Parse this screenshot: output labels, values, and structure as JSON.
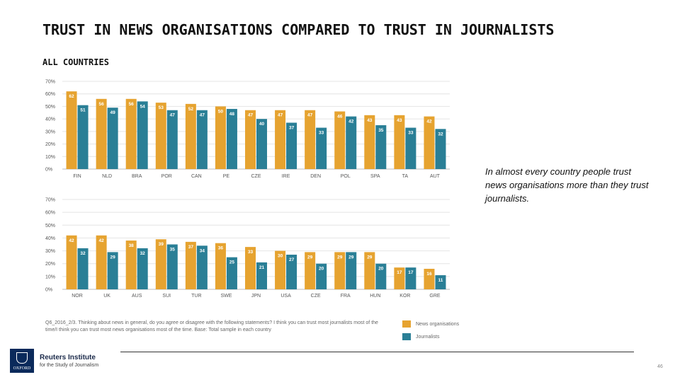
{
  "title": "TRUST IN NEWS ORGANISATIONS COMPARED TO TRUST IN JOURNALISTS",
  "subtitle": "ALL COUNTRIES",
  "annotation": "In almost every country people trust news organisations more than they trust journalists.",
  "footnote": "Q6_2016_2/3. Thinking about news in general, do you agree or disagree with the following statements? I think you can trust most journalists most of the time/I think you can trust most news organisations most of the time. Base: Total sample in each country",
  "colors": {
    "news": "#e6a330",
    "journalists": "#2a7f96"
  },
  "logo": {
    "name": "Reuters Institute",
    "sub": "for the Study of Journalism",
    "crest_text": "OXFORD"
  },
  "page_number": "46",
  "chart_data": [
    {
      "type": "bar",
      "categories": [
        "FIN",
        "NLD",
        "BRA",
        "POR",
        "CAN",
        "PE",
        "CZE",
        "IRE",
        "DEN",
        "POL",
        "SPA",
        "TA",
        "AUT"
      ],
      "series": [
        {
          "name": "News organisations",
          "values": [
            62,
            56,
            56,
            53,
            52,
            50,
            47,
            47,
            47,
            46,
            43,
            43,
            42
          ]
        },
        {
          "name": "Journalists",
          "values": [
            51,
            49,
            54,
            47,
            47,
            48,
            40,
            37,
            33,
            42,
            35,
            33,
            32
          ]
        }
      ],
      "yticks": [
        "0%",
        "10%",
        "20%",
        "30%",
        "40%",
        "50%",
        "60%",
        "70%"
      ],
      "ylim": [
        0,
        70
      ]
    },
    {
      "type": "bar",
      "categories": [
        "NOR",
        "UK",
        "AUS",
        "SUI",
        "TUR",
        "SWE",
        "JPN",
        "USA",
        "CZE",
        "FRA",
        "HUN",
        "KOR",
        "GRE"
      ],
      "series": [
        {
          "name": "News organisations",
          "values": [
            42,
            42,
            38,
            39,
            37,
            36,
            33,
            30,
            29,
            29,
            29,
            17,
            16
          ]
        },
        {
          "name": "Journalists",
          "values": [
            32,
            29,
            32,
            35,
            34,
            25,
            21,
            27,
            20,
            29,
            20,
            17,
            11
          ]
        }
      ],
      "yticks": [
        "0%",
        "10%",
        "20%",
        "30%",
        "40%",
        "50%",
        "60%",
        "70%"
      ],
      "ylim": [
        0,
        70
      ]
    }
  ],
  "legend": [
    {
      "label": "News organisations",
      "color": "#e6a330"
    },
    {
      "label": "Journalists",
      "color": "#2a7f96"
    }
  ]
}
